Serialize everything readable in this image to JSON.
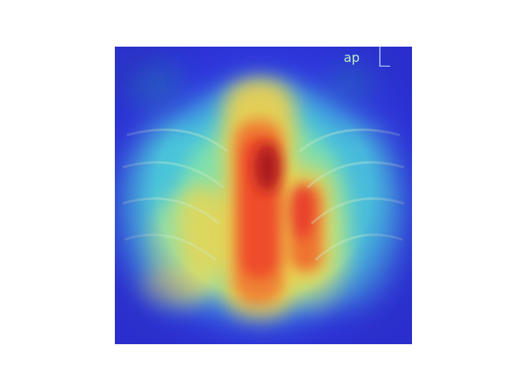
{
  "image": {
    "kind": "chest-xray-heatmap-overlay",
    "markers": {
      "view_label": "ap",
      "side_label": "L"
    },
    "colors": {
      "cold": "#2b2fd8",
      "cool": "#3fa7e8",
      "mid": "#5ee6c8",
      "warm": "#f2d24a",
      "hot": "#f0462a",
      "peak": "#8a0f1a"
    }
  }
}
